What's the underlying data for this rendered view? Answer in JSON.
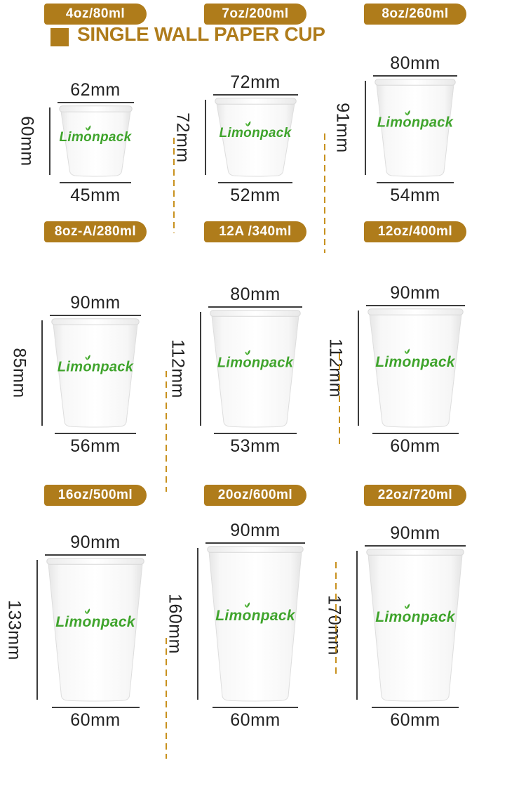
{
  "page": {
    "title": "SINGLE WALL PAPER CUP",
    "accent_gold": "#AF7C1B",
    "dash_color": "#C8911E",
    "logo_green": "#3FA42C"
  },
  "logo": {
    "prefix": "Lim",
    "o": "o",
    "suffix": "npack",
    "name": "Limonpack"
  },
  "cups": [
    {
      "badge": "4oz/80ml",
      "top": "62mm",
      "height": "60mm",
      "bottom": "45mm"
    },
    {
      "badge": "7oz/200ml",
      "top": "72mm",
      "height": "72mm",
      "bottom": "52mm"
    },
    {
      "badge": "8oz/260ml",
      "top": "80mm",
      "height": "91mm",
      "bottom": "54mm"
    },
    {
      "badge": "8oz-A/280ml",
      "top": "90mm",
      "height": "85mm",
      "bottom": "56mm"
    },
    {
      "badge": "12A /340ml",
      "top": "80mm",
      "height": "112mm",
      "bottom": "53mm"
    },
    {
      "badge": "12oz/400ml",
      "top": "90mm",
      "height": "112mm",
      "bottom": "60mm"
    },
    {
      "badge": "16oz/500ml",
      "top": "90mm",
      "height": "133mm",
      "bottom": "60mm"
    },
    {
      "badge": "20oz/600ml",
      "top": "90mm",
      "height": "160mm",
      "bottom": "60mm"
    },
    {
      "badge": "22oz/720ml",
      "top": "90mm",
      "height": "170mm",
      "bottom": "60mm"
    }
  ]
}
